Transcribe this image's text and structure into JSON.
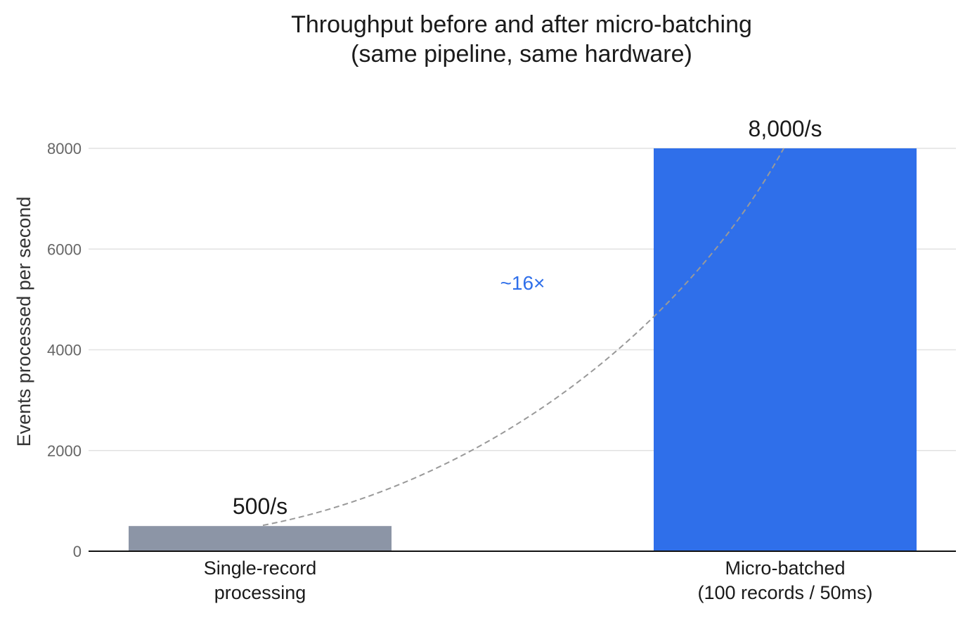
{
  "chart_data": {
    "type": "bar",
    "title": "Throughput before and after micro-batching",
    "subtitle": "(same pipeline, same hardware)",
    "xlabel": "",
    "ylabel": "Events processed per second",
    "categories": [
      [
        "Single-record",
        "processing"
      ],
      [
        "Micro-batched",
        "(100 records / 50ms)"
      ]
    ],
    "values": [
      500,
      8000
    ],
    "value_labels": [
      "500/s",
      "8,000/s"
    ],
    "bar_colors": [
      "#8c95a6",
      "#2f6fea"
    ],
    "ylim": [
      0,
      8000
    ],
    "yticks": [
      0,
      2000,
      4000,
      6000,
      8000
    ],
    "grid": true,
    "annotation": {
      "text": "~16×",
      "color": "#2f6fea",
      "connector": "dashed-curve",
      "connector_color": "#999999"
    }
  }
}
